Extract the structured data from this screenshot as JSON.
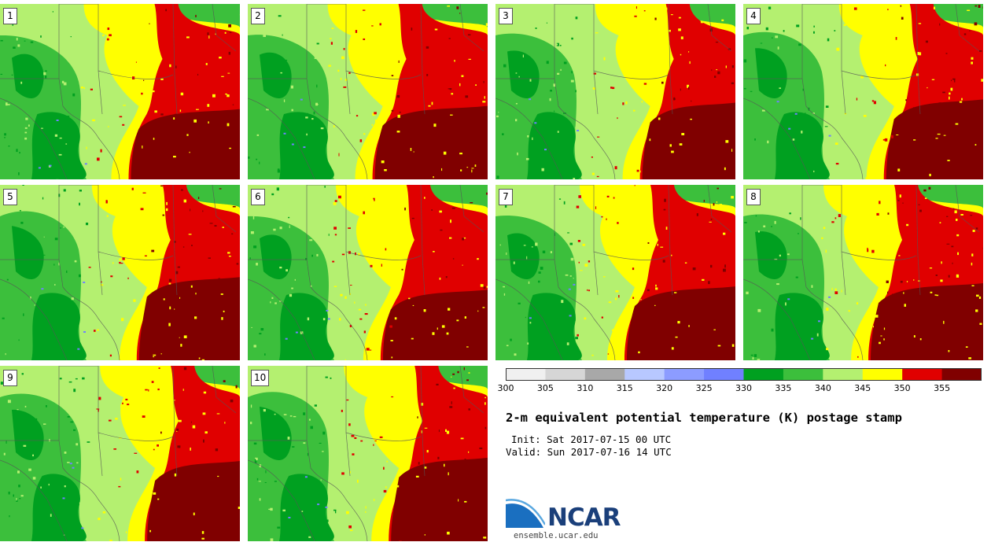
{
  "title": "2-m equivalent potential temperature (K) postage stamp",
  "init_text": "Init: Sat 2017-07-15 00 UTC",
  "valid_text": "Valid: Sun 2017-07-16 14 UTC",
  "logo_text": "NCAR",
  "website": "ensemble.ucar.edu",
  "members": [
    "1",
    "2",
    "3",
    "4",
    "5",
    "6",
    "7",
    "8",
    "9",
    "10"
  ],
  "colorbar": {
    "ticks": [
      "300",
      "305",
      "310",
      "315",
      "320",
      "325",
      "330",
      "335",
      "340",
      "345",
      "350",
      "355"
    ],
    "colors": [
      "#f0f0f0",
      "#d6d6d6",
      "#a8a8a8",
      "#b8c8ff",
      "#8c9cff",
      "#7080ff",
      "#00a020",
      "#3cbf3c",
      "#b4f070",
      "#ffff00",
      "#e00000",
      "#800000"
    ]
  },
  "field_colors": {
    "dark_green": "#00a020",
    "mid_green": "#3cbf3c",
    "light_green": "#b4f070",
    "yellow": "#ffff00",
    "red": "#e00000",
    "dark_red": "#800000",
    "blue": "#7080ff"
  }
}
